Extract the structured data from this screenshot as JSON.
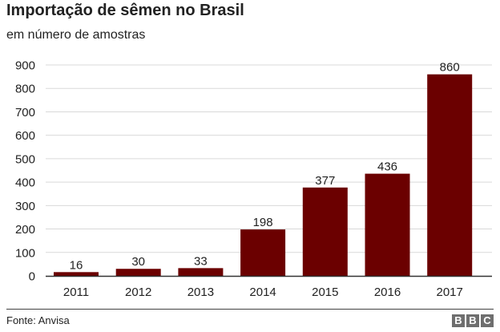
{
  "header": {
    "title": "Importação de sêmen no Brasil",
    "subtitle": "em número de amostras"
  },
  "footer": {
    "source": "Fonte: Anvisa",
    "logo_letters": [
      "B",
      "B",
      "C"
    ]
  },
  "colors": {
    "bar": "#6b0000",
    "grid": "#d9d9d9",
    "axis": "#333333",
    "logo": "#6e6e6e"
  },
  "chart_data": {
    "type": "bar",
    "title": "Importação de sêmen no Brasil",
    "subtitle": "em número de amostras",
    "categories": [
      "2011",
      "2012",
      "2013",
      "2014",
      "2015",
      "2016",
      "2017"
    ],
    "values": [
      16,
      30,
      33,
      198,
      377,
      436,
      860
    ],
    "data_labels": [
      "16",
      "30",
      "33",
      "198",
      "377",
      "436",
      "860"
    ],
    "xlabel": "",
    "ylabel": "",
    "ylim": [
      0,
      900
    ],
    "yticks": [
      "0",
      "100",
      "200",
      "300",
      "400",
      "500",
      "600",
      "700",
      "800",
      "900"
    ],
    "grid": true,
    "legend": "none"
  }
}
